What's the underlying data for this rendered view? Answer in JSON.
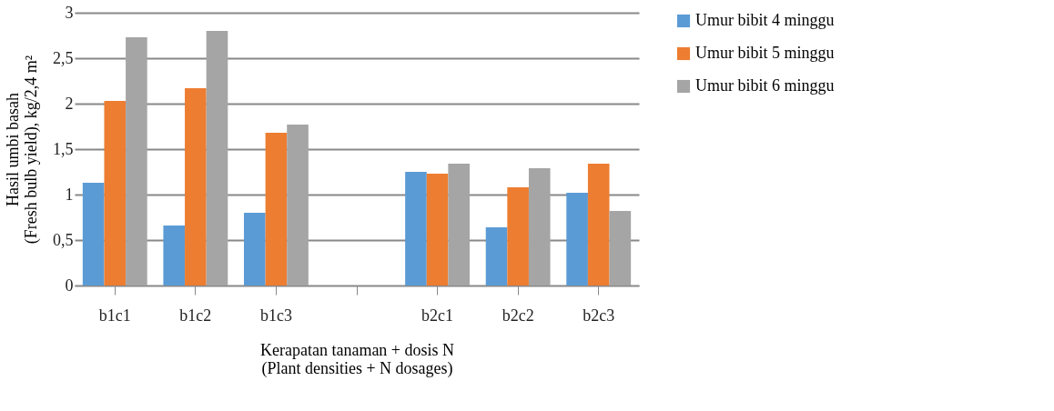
{
  "chart_data": {
    "type": "bar",
    "xlabel": "Kerapatan tanaman + dosis N\n(Plant densities + N dosages)",
    "ylabel": "Hasil umbi basah\n(Fresh bulb yield), kg/2,4 m²",
    "categories": [
      "b1c1",
      "b1c2",
      "b1c3",
      null,
      "b2c1",
      "b2c2",
      "b2c3"
    ],
    "series": [
      {
        "name": "Umur bibit 4 minggu",
        "color": "#5b9bd5",
        "values": [
          1.13,
          0.66,
          0.8,
          null,
          1.25,
          0.64,
          1.02
        ]
      },
      {
        "name": "Umur bibit 5 minggu",
        "color": "#ed7d31",
        "values": [
          2.03,
          2.17,
          1.68,
          null,
          1.23,
          1.08,
          1.34
        ]
      },
      {
        "name": "Umur bibit 6 minggu",
        "color": "#a5a5a5",
        "values": [
          2.73,
          2.8,
          1.77,
          null,
          1.34,
          1.29,
          0.82
        ]
      }
    ],
    "ylim": [
      0,
      3
    ],
    "yticks": [
      0,
      {
        "value": 0.5,
        "label": "0,5"
      },
      1,
      {
        "value": 1.5,
        "label": "1,5"
      },
      2,
      {
        "value": 2.5,
        "label": "2,5"
      },
      3
    ],
    "grid": "y",
    "legend": "right"
  }
}
